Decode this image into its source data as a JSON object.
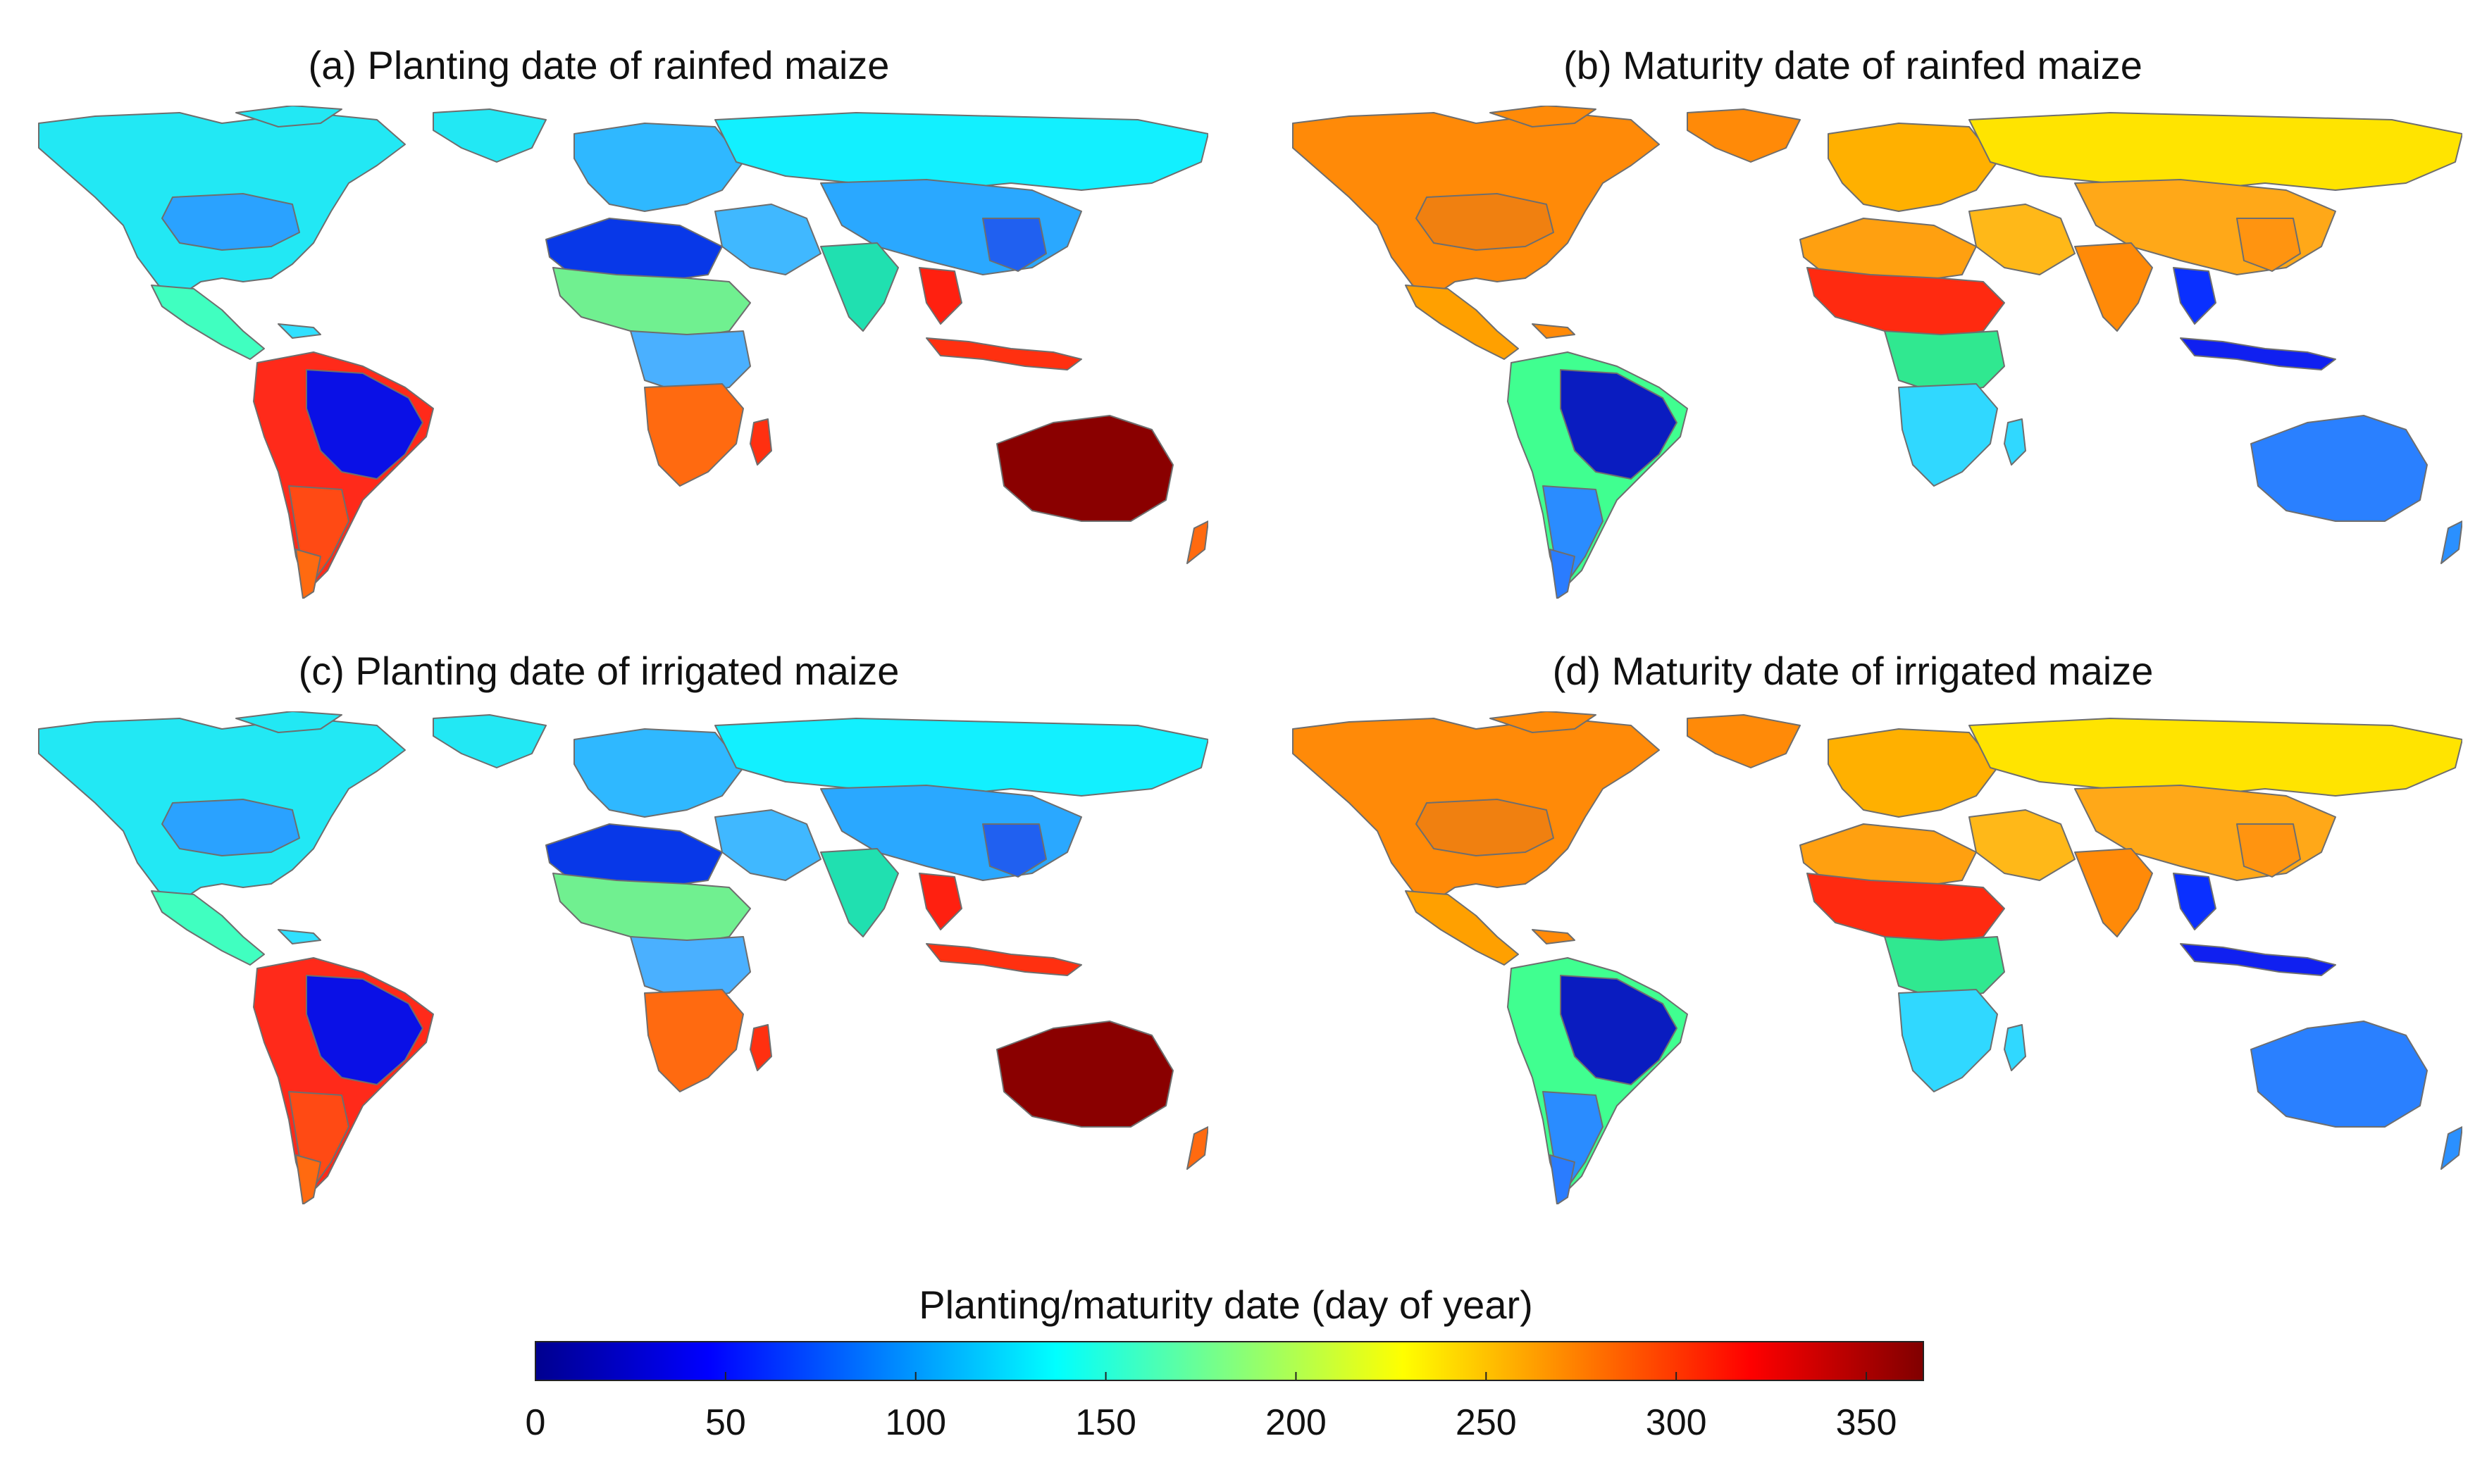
{
  "panels": [
    {
      "title": "(a) Planting date of rainfed maize",
      "scheme": "planting"
    },
    {
      "title": "(b) Maturity date of rainfed maize",
      "scheme": "maturity"
    },
    {
      "title": "(c) Planting date of irrigated maize",
      "scheme": "planting"
    },
    {
      "title": "(d) Maturity date of irrigated maize",
      "scheme": "maturity"
    }
  ],
  "legend": {
    "title": "Planting/maturity date (day of year)",
    "min": 0,
    "max": 365,
    "ticks": [
      "0",
      "50",
      "100",
      "150",
      "200",
      "250",
      "300",
      "350"
    ],
    "colormap": "jet"
  },
  "colors": {
    "jet": [
      "#00008f",
      "#0000ff",
      "#0080ff",
      "#00ffff",
      "#80ff80",
      "#ffff00",
      "#ff8000",
      "#ff0000",
      "#800000"
    ],
    "border": "#6e6e6e",
    "ocean": "#ffffff"
  },
  "regions": {
    "planting": {
      "north_america": "#22e8f4",
      "us_corn_belt": "#2aa2ff",
      "mexico_central": "#40ffc0",
      "caribbean": "#30e0ff",
      "south_america_north": "#ff2a1a",
      "brazil": "#0a10e6",
      "southern_cone": "#ff4a14",
      "patagonia": "#ff6a10",
      "europe": "#2fb8ff",
      "russia": "#12f0ff",
      "north_africa": "#0838e8",
      "sahel": "#70f090",
      "central_africa": "#4ab0ff",
      "southern_africa": "#ff6a10",
      "middle_east": "#40b8ff",
      "india": "#20e0b0",
      "china": "#2aa8ff",
      "east_china": "#2060f0",
      "se_asia": "#ff2010",
      "indonesia": "#ff3010",
      "australia": "#8a0000",
      "nz": "#ff6a10",
      "madagascar": "#ff3010"
    },
    "maturity": {
      "north_america": "#ff8a08",
      "us_corn_belt": "#f08010",
      "mexico_central": "#ffa000",
      "caribbean": "#ff8a08",
      "south_america_north": "#40ff90",
      "brazil": "#0a1cc0",
      "southern_cone": "#2a8cff",
      "patagonia": "#2a7cff",
      "europe": "#ffb000",
      "russia": "#ffe400",
      "north_africa": "#ffa010",
      "sahel": "#ff2a10",
      "central_africa": "#30e890",
      "southern_africa": "#30d8ff",
      "middle_east": "#ffb818",
      "india": "#ff8a08",
      "china": "#ffa818",
      "east_china": "#ff9410",
      "se_asia": "#0a30ff",
      "indonesia": "#1020f0",
      "australia": "#2a80ff",
      "nz": "#2a90ff",
      "madagascar": "#30d8ff"
    }
  }
}
